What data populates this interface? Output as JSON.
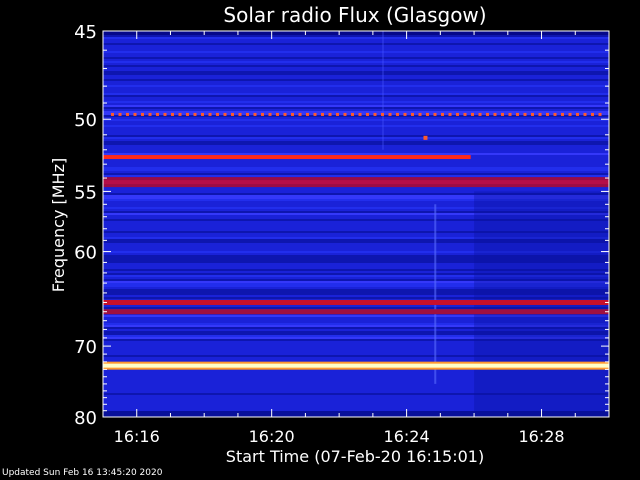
{
  "chart_data": {
    "type": "heatmap",
    "title": "Solar radio Flux (Glasgow)",
    "xlabel": "Start Time (07-Feb-20 16:15:01)",
    "ylabel": "Frequency [MHz]",
    "x_ticks": [
      "16:16",
      "16:20",
      "16:24",
      "16:28"
    ],
    "x_tick_minutes": [
      1,
      5,
      9,
      13
    ],
    "xlim_minutes": [
      0,
      15
    ],
    "y_ticks": [
      45,
      50,
      55,
      60,
      70,
      80
    ],
    "ylim": [
      45,
      80
    ],
    "y_scale": "reciprocal",
    "horizontal_features_mhz": [
      {
        "freq": 49.7,
        "kind": "dotted",
        "color": "#ff5a2a"
      },
      {
        "freq": 52.5,
        "kind": "line-partial",
        "end_minute": 10.9,
        "color": "#ff2a1a"
      },
      {
        "freq": 54.3,
        "kind": "band",
        "color": "#9a0c46"
      },
      {
        "freq": 65.0,
        "kind": "line",
        "color": "#c8102a"
      },
      {
        "freq": 66.0,
        "kind": "line",
        "color": "#a01040"
      },
      {
        "freq": 72.5,
        "kind": "line",
        "color": "#ffffc8"
      }
    ],
    "background_color": "#1a22d8",
    "grid": false,
    "legend": "none"
  },
  "footer": {
    "updated_text": "Updated Sun Feb 16 13:45:20 2020"
  }
}
